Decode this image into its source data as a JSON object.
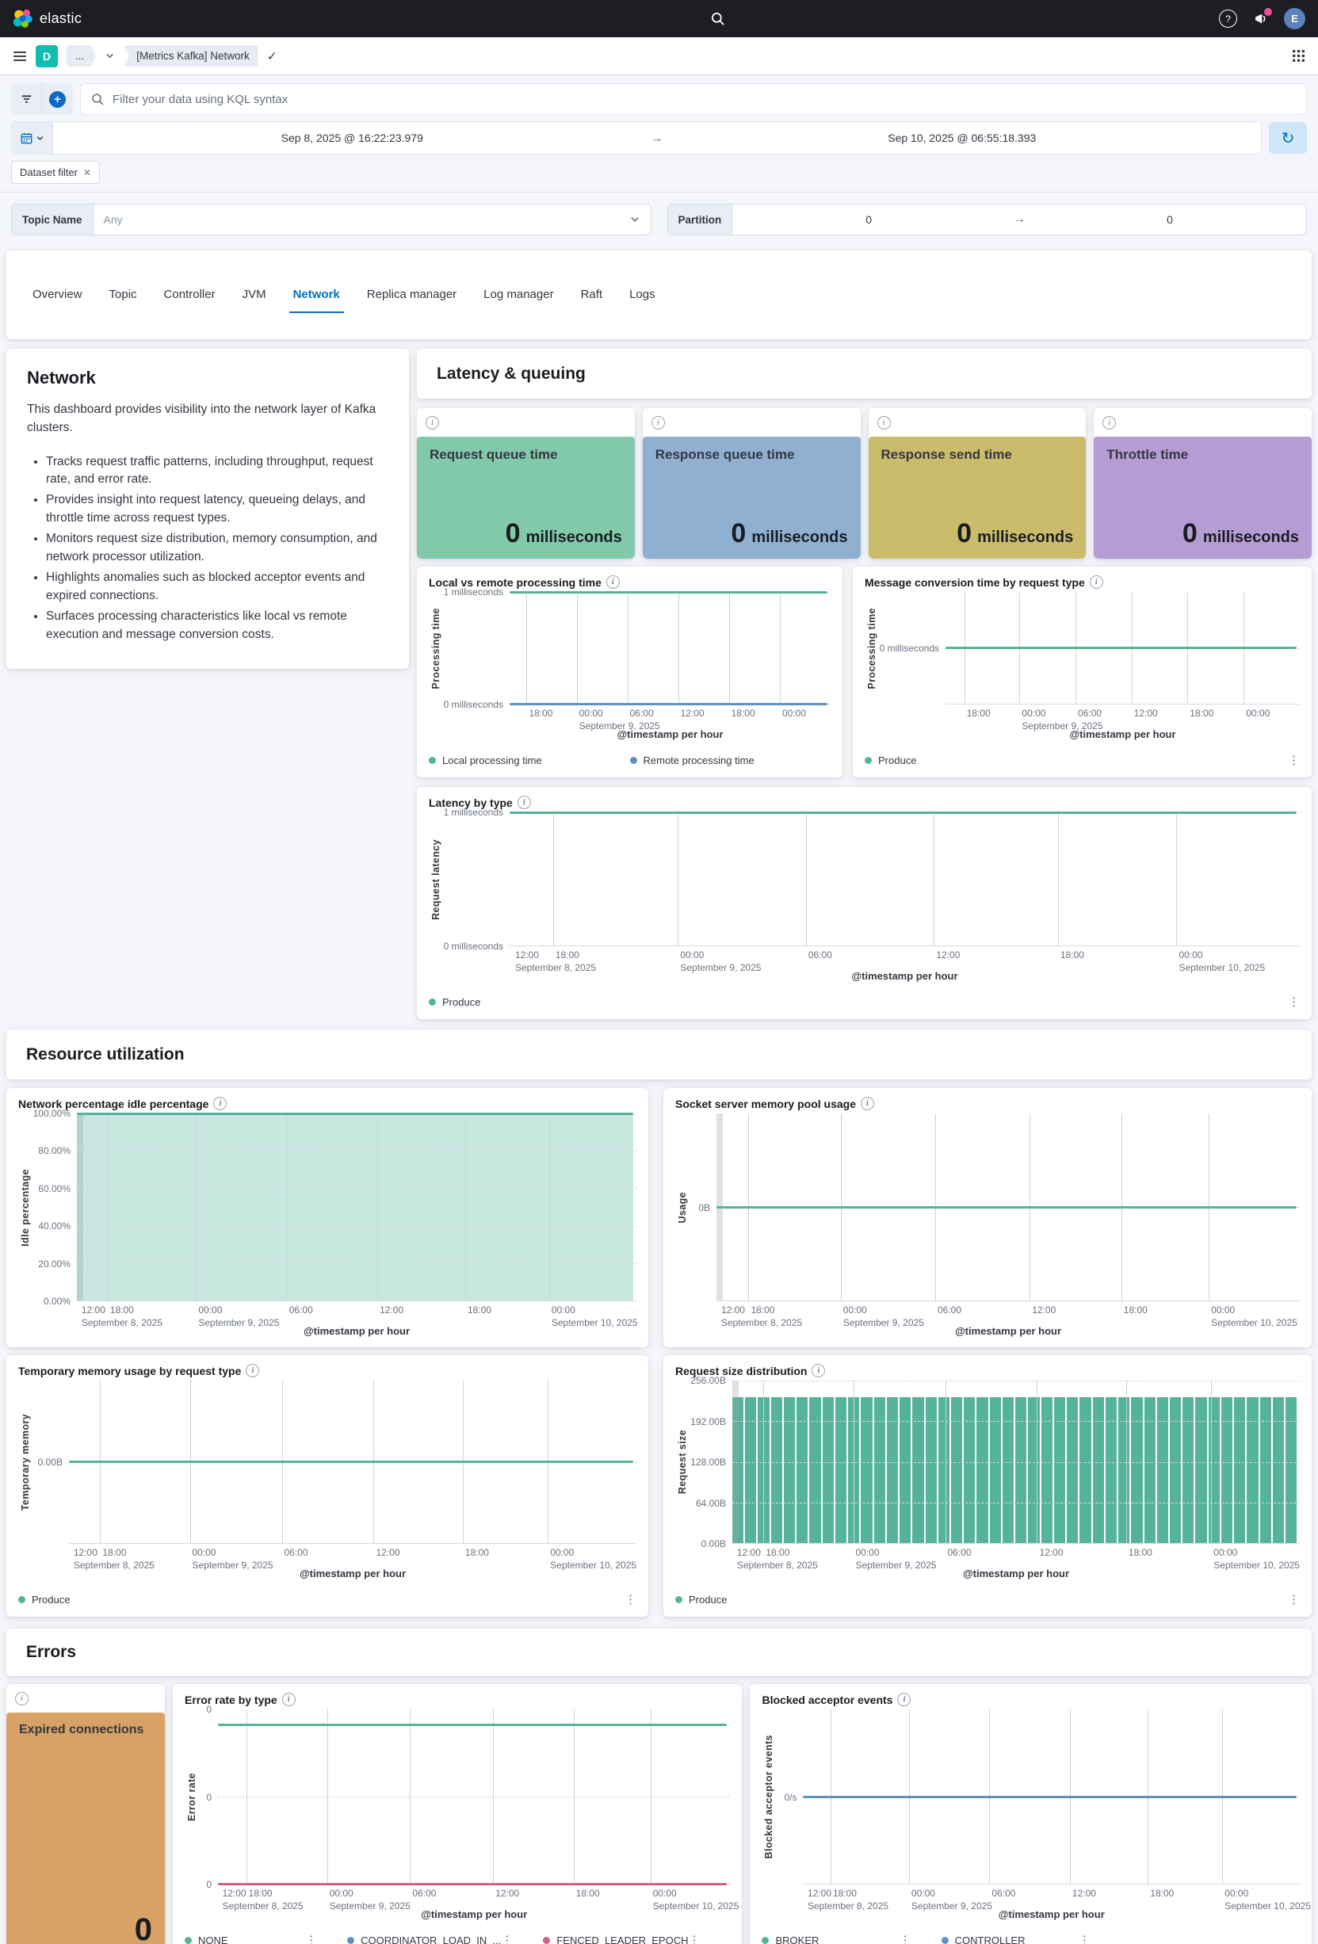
{
  "topbar": {
    "brand": "elastic",
    "avatar_initial": "E"
  },
  "breadcrumbs": {
    "app_badge": "D",
    "collapsed": "...",
    "current": "[Metrics Kafka] Network"
  },
  "query_bar": {
    "placeholder": "Filter your data using KQL syntax"
  },
  "time_picker": {
    "start": "Sep 8, 2025 @ 16:22:23.979",
    "end": "Sep 10, 2025 @ 06:55:18.393"
  },
  "filter_chip": "Dataset filter",
  "controls": {
    "topic_label": "Topic Name",
    "topic_value": "Any",
    "partition_label": "Partition",
    "partition_from": "0",
    "partition_to": "0"
  },
  "tabs": {
    "active": "Network",
    "items": [
      "Overview",
      "Topic",
      "Controller",
      "JVM",
      "Network",
      "Replica manager",
      "Log manager",
      "Raft",
      "Logs"
    ]
  },
  "network_panel": {
    "title": "Network",
    "intro": "This dashboard provides visibility into the network layer of Kafka clusters.",
    "bullets": [
      "Tracks request traffic patterns, including throughput, request rate, and error rate.",
      "Provides insight into request latency, queueing delays, and throttle time across request types.",
      "Monitors request size distribution, memory consumption, and network processor utilization.",
      "Highlights anomalies such as blocked acceptor events and expired connections.",
      "Surfaces processing characteristics like local vs remote execution and message conversion costs."
    ]
  },
  "sections": {
    "latency": "Latency & queuing",
    "resource": "Resource utilization",
    "errors": "Errors"
  },
  "metric_cards": [
    {
      "title": "Request queue time",
      "value": "0",
      "unit": "milliseconds",
      "color": "#82c9ac"
    },
    {
      "title": "Response queue time",
      "value": "0",
      "unit": "milliseconds",
      "color": "#90b0d1"
    },
    {
      "title": "Response send time",
      "value": "0",
      "unit": "milliseconds",
      "color": "#cbbc6b"
    },
    {
      "title": "Throttle time",
      "value": "0",
      "unit": "milliseconds",
      "color": "#b59dd3"
    }
  ],
  "expired_card": {
    "title": "Expired connections",
    "value": "0",
    "color": "#d8a266"
  },
  "chart_data": [
    {
      "id": "local_remote",
      "type": "line",
      "title": "Local vs remote processing time",
      "ylabel": "Processing time",
      "xlabel": "@timestamp per hour",
      "ylim": [
        "0 milliseconds",
        "1 milliseconds"
      ],
      "ytick_w": 84,
      "yticks": [
        {
          "label": "1 milliseconds",
          "pos": 0
        },
        {
          "label": "0 milliseconds",
          "pos": 1
        }
      ],
      "xticks": [
        {
          "label": "18:00",
          "pos": 0.053
        },
        {
          "label": "00:00",
          "sub": "September 9, 2025",
          "pos": 0.209
        },
        {
          "label": "06:00",
          "pos": 0.367
        },
        {
          "label": "12:00",
          "pos": 0.525
        },
        {
          "label": "18:00",
          "pos": 0.683
        },
        {
          "label": "00:00",
          "pos": 0.842
        }
      ],
      "series": [
        {
          "name": "Local processing time",
          "color": "#54b399",
          "value": "1 millisecond (constant)",
          "level": 1
        },
        {
          "name": "Remote processing time",
          "color": "#6092c0",
          "value": "0 milliseconds (constant)",
          "level": 0
        }
      ],
      "legend": {
        "cols": 2,
        "kebab": false
      }
    },
    {
      "id": "msg_conversion",
      "type": "line",
      "title": "Message conversion time by request type",
      "ylabel": "Processing time",
      "xlabel": "@timestamp per hour",
      "ytick_w": 84,
      "yticks": [
        {
          "label": "0 milliseconds",
          "pos": 0.5
        }
      ],
      "xticks": [
        {
          "label": "18:00",
          "pos": 0.053
        },
        {
          "label": "00:00",
          "sub": "September 9, 2025",
          "pos": 0.209
        },
        {
          "label": "06:00",
          "pos": 0.367
        },
        {
          "label": "12:00",
          "pos": 0.525
        },
        {
          "label": "18:00",
          "pos": 0.683
        },
        {
          "label": "00:00",
          "pos": 0.842
        }
      ],
      "series": [
        {
          "name": "Produce",
          "color": "#54b399",
          "value": "0 milliseconds (constant)",
          "level": 0.5
        }
      ],
      "legend": {
        "cols": 1,
        "kebab": true
      }
    },
    {
      "id": "latency_by_type",
      "type": "line",
      "title": "Latency by type",
      "ylabel": "Request latency",
      "xlabel": "@timestamp per hour",
      "ylim": [
        "0 milliseconds",
        "1 milliseconds"
      ],
      "ytick_w": 84,
      "yticks": [
        {
          "label": "1 milliseconds",
          "pos": 0
        },
        {
          "label": "0 milliseconds",
          "pos": 1
        }
      ],
      "xticks": [
        {
          "label": "12:00",
          "sub": "September 8, 2025",
          "pos": 0.004
        },
        {
          "label": "18:00",
          "pos": 0.055
        },
        {
          "label": "00:00",
          "sub": "September 9, 2025",
          "pos": 0.213
        },
        {
          "label": "06:00",
          "pos": 0.375
        },
        {
          "label": "12:00",
          "pos": 0.537
        },
        {
          "label": "18:00",
          "pos": 0.694
        },
        {
          "label": "00:00",
          "sub": "September 10, 2025",
          "pos": 0.844
        }
      ],
      "series": [
        {
          "name": "Produce",
          "color": "#54b399",
          "value": "1 millisecond (constant)",
          "level": 1
        }
      ],
      "legend": {
        "cols": 1,
        "kebab": true
      }
    },
    {
      "id": "idle_pct",
      "type": "area",
      "title": "Network percentage idle percentage",
      "ylabel": "Idle percentage",
      "xlabel": "@timestamp per hour",
      "ylim": [
        "0.00%",
        "100.00%"
      ],
      "ytick_w": 56,
      "left_band": true,
      "yticks": [
        {
          "label": "100.00%",
          "pos": 0
        },
        {
          "label": "80.00%",
          "pos": 0.2
        },
        {
          "label": "60.00%",
          "pos": 0.4
        },
        {
          "label": "40.00%",
          "pos": 0.6
        },
        {
          "label": "20.00%",
          "pos": 0.8
        },
        {
          "label": "0.00%",
          "pos": 1
        }
      ],
      "xticks": [
        {
          "label": "12:00",
          "sub": "September 8, 2025",
          "pos": 0.004
        },
        {
          "label": "18:00",
          "pos": 0.055
        },
        {
          "label": "00:00",
          "sub": "September 9, 2025",
          "pos": 0.213
        },
        {
          "label": "06:00",
          "pos": 0.375
        },
        {
          "label": "12:00",
          "pos": 0.537
        },
        {
          "label": "18:00",
          "pos": 0.694
        },
        {
          "label": "00:00",
          "sub": "September 10, 2025",
          "pos": 0.844
        }
      ],
      "series": [
        {
          "name": "Idle percentage",
          "color": "#54b399",
          "fill": "rgba(84,179,153,0.32)",
          "value": "100% (constant)",
          "level": 1
        }
      ],
      "legend": null
    },
    {
      "id": "socket_mem",
      "type": "line",
      "title": "Socket server memory pool usage",
      "ylabel": "Usage",
      "xlabel": "@timestamp per hour",
      "ytick_w": 34,
      "left_band": true,
      "yticks": [
        {
          "label": "0B",
          "pos": 0.5
        }
      ],
      "xticks": [
        {
          "label": "12:00",
          "sub": "September 8, 2025",
          "pos": 0.004
        },
        {
          "label": "18:00",
          "pos": 0.055
        },
        {
          "label": "00:00",
          "sub": "September 9, 2025",
          "pos": 0.213
        },
        {
          "label": "06:00",
          "pos": 0.375
        },
        {
          "label": "12:00",
          "pos": 0.537
        },
        {
          "label": "18:00",
          "pos": 0.694
        },
        {
          "label": "00:00",
          "sub": "September 10, 2025",
          "pos": 0.844
        }
      ],
      "series": [
        {
          "name": "Usage",
          "color": "#54b399",
          "value": "0B (constant)",
          "level": 0.5
        }
      ],
      "legend": null
    },
    {
      "id": "temp_mem",
      "type": "line",
      "title": "Temporary memory usage by request type",
      "ylabel": "Temporary memory",
      "xlabel": "@timestamp per hour",
      "ytick_w": 46,
      "yticks": [
        {
          "label": "0.00B",
          "pos": 0.5
        }
      ],
      "xticks": [
        {
          "label": "12:00",
          "sub": "September 8, 2025",
          "pos": 0.004
        },
        {
          "label": "18:00",
          "pos": 0.055
        },
        {
          "label": "00:00",
          "sub": "September 9, 2025",
          "pos": 0.213
        },
        {
          "label": "06:00",
          "pos": 0.375
        },
        {
          "label": "12:00",
          "pos": 0.537
        },
        {
          "label": "18:00",
          "pos": 0.694
        },
        {
          "label": "00:00",
          "sub": "September 10, 2025",
          "pos": 0.844
        }
      ],
      "series": [
        {
          "name": "Produce",
          "color": "#54b399",
          "value": "0B (constant)",
          "level": 0.5
        }
      ],
      "legend": {
        "cols": 1,
        "kebab": true
      }
    },
    {
      "id": "request_size",
      "type": "bar",
      "title": "Request size distribution",
      "ylabel": "Request size",
      "xlabel": "@timestamp per hour",
      "ylim": [
        "0.00B",
        "256.00B"
      ],
      "ytick_w": 54,
      "bars": 44,
      "hline_top": true,
      "left_band": true,
      "yticks": [
        {
          "label": "256.00B",
          "pos": 0
        },
        {
          "label": "192.00B",
          "pos": 0.25
        },
        {
          "label": "128.00B",
          "pos": 0.5
        },
        {
          "label": "64.00B",
          "pos": 0.75
        },
        {
          "label": "0.00B",
          "pos": 1
        }
      ],
      "xticks": [
        {
          "label": "12:00",
          "sub": "September 8, 2025",
          "pos": 0.004
        },
        {
          "label": "18:00",
          "pos": 0.055
        },
        {
          "label": "00:00",
          "sub": "September 9, 2025",
          "pos": 0.213
        },
        {
          "label": "06:00",
          "pos": 0.375
        },
        {
          "label": "12:00",
          "pos": 0.537
        },
        {
          "label": "18:00",
          "pos": 0.694
        },
        {
          "label": "00:00",
          "sub": "September 10, 2025",
          "pos": 0.844
        }
      ],
      "series": [
        {
          "name": "Produce",
          "color": "#54b399",
          "value": "~230B per hourly bucket (constant)",
          "level": 0.9
        }
      ],
      "legend": {
        "cols": 1,
        "kebab": true
      }
    },
    {
      "id": "error_rate",
      "type": "line",
      "title": "Error rate by type",
      "ylabel": "Error rate",
      "xlabel": "@timestamp per hour",
      "ytick_w": 24,
      "yticks": [
        {
          "label": "0",
          "pos": 0
        },
        {
          "label": "0",
          "pos": 0.5
        },
        {
          "label": "0",
          "pos": 1
        }
      ],
      "xticks": [
        {
          "label": "12:00",
          "sub": "September 8, 2025",
          "pos": 0.004
        },
        {
          "label": "18:00",
          "pos": 0.055
        },
        {
          "label": "00:00",
          "sub": "September 9, 2025",
          "pos": 0.213
        },
        {
          "label": "06:00",
          "pos": 0.375
        },
        {
          "label": "12:00",
          "pos": 0.537
        },
        {
          "label": "18:00",
          "pos": 0.694
        },
        {
          "label": "00:00",
          "sub": "September 10, 2025",
          "pos": 0.844
        }
      ],
      "series": [
        {
          "name": "NONE",
          "color": "#54b399",
          "value": "constant upper flat line",
          "level": 0.91
        },
        {
          "name": "COORDINATOR_LOAD_IN_...",
          "color": "#6092c0",
          "value": "0 (constant)",
          "level": 0
        },
        {
          "name": "FENCED_LEADER_EPOCH",
          "color": "#d36086",
          "value": "0 (constant)",
          "level": 0
        }
      ],
      "legend": {
        "cols": 3,
        "kebab": true
      }
    },
    {
      "id": "blocked_acceptor",
      "type": "line",
      "title": "Blocked acceptor events",
      "ylabel": "Blocked acceptor events",
      "xlabel": "@timestamp per hour",
      "ytick_w": 34,
      "yticks": [
        {
          "label": "0/s",
          "pos": 0.5
        }
      ],
      "xticks": [
        {
          "label": "12:00",
          "sub": "September 8, 2025",
          "pos": 0.004
        },
        {
          "label": "18:00",
          "pos": 0.055
        },
        {
          "label": "00:00",
          "sub": "September 9, 2025",
          "pos": 0.213
        },
        {
          "label": "06:00",
          "pos": 0.375
        },
        {
          "label": "12:00",
          "pos": 0.537
        },
        {
          "label": "18:00",
          "pos": 0.694
        },
        {
          "label": "00:00",
          "sub": "September 10, 2025",
          "pos": 0.844
        }
      ],
      "series": [
        {
          "name": "BROKER",
          "color": "#54b399",
          "value": "0/s (constant)",
          "level": 0.5
        },
        {
          "name": "CONTROLLER",
          "color": "#6092c0",
          "value": "0/s (constant)",
          "level": 0.5
        }
      ],
      "legend": {
        "cols": 3,
        "kebab": true
      }
    }
  ]
}
